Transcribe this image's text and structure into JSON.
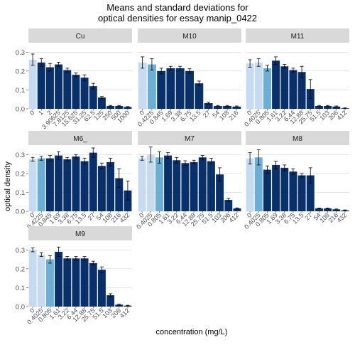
{
  "title_line1": "Means and standard deviations for",
  "title_line2": "optical densities for essay manip_0422",
  "xlabel": "concentration (mg/L)",
  "ylabel": "optical density",
  "colors": {
    "light": "#c6dbef",
    "mid": "#6baed6",
    "dark": "#08306b",
    "strip_bg": "#d9d9d9",
    "grid": "#d3d3d3"
  },
  "chart_data": {
    "type": "bar",
    "ylim": [
      0,
      0.35
    ],
    "yticks": [
      0.0,
      0.1,
      0.2,
      0.3
    ],
    "grid": true,
    "panels": [
      {
        "name": "Cu",
        "categories": [
          "0",
          "1",
          "2",
          "3.90625",
          "7.8125",
          "15.625",
          "31.25",
          "62.5",
          "125",
          "250",
          "500",
          "1000"
        ],
        "values": [
          0.26,
          0.245,
          0.22,
          0.235,
          0.205,
          0.18,
          0.165,
          0.12,
          0.06,
          0.015,
          0.015,
          0.01
        ],
        "errors": [
          0.03,
          0.02,
          0.02,
          0.012,
          0.01,
          0.01,
          0.015,
          0.015,
          0.005,
          0.003,
          0.003,
          0.002
        ],
        "tones": [
          "light",
          "dark",
          "dark",
          "dark",
          "dark",
          "dark",
          "dark",
          "dark",
          "dark",
          "dark",
          "dark",
          "dark"
        ]
      },
      {
        "name": "M10",
        "categories": [
          "0",
          "0.4225",
          "0.845",
          "1.69",
          "3.38",
          "6.75",
          "13.5",
          "27",
          "54",
          "108",
          "216"
        ],
        "values": [
          0.245,
          0.235,
          0.2,
          0.215,
          0.215,
          0.2,
          0.135,
          0.03,
          0.015,
          0.015,
          0.012
        ],
        "errors": [
          0.03,
          0.03,
          0.015,
          0.01,
          0.01,
          0.012,
          0.012,
          0.005,
          0.003,
          0.003,
          0.003
        ],
        "tones": [
          "light",
          "mid",
          "dark",
          "dark",
          "dark",
          "dark",
          "dark",
          "dark",
          "dark",
          "dark",
          "dark"
        ]
      },
      {
        "name": "M11",
        "categories": [
          "0",
          "0.4025",
          "0.805",
          "1.61",
          "3.22",
          "6.44",
          "12.88",
          "25.75",
          "51.5",
          "103",
          "206",
          "412"
        ],
        "values": [
          0.24,
          0.245,
          0.215,
          0.255,
          0.225,
          0.205,
          0.195,
          0.105,
          0.015,
          0.015,
          0.012,
          0.003
        ],
        "errors": [
          0.02,
          0.02,
          0.015,
          0.02,
          0.01,
          0.01,
          0.03,
          0.05,
          0.003,
          0.003,
          0.003,
          0.002
        ],
        "tones": [
          "light",
          "light",
          "mid",
          "dark",
          "dark",
          "dark",
          "dark",
          "dark",
          "dark",
          "dark",
          "dark",
          "dark"
        ]
      },
      {
        "name": "M6_",
        "categories": [
          "0",
          "0.4225",
          "0.845",
          "1.69",
          "3.38",
          "6.75",
          "13.5",
          "27",
          "54",
          "108",
          "216",
          "432"
        ],
        "values": [
          0.275,
          0.28,
          0.28,
          0.295,
          0.275,
          0.29,
          0.265,
          0.31,
          0.24,
          0.26,
          0.175,
          0.11
        ],
        "errors": [
          0.01,
          0.01,
          0.015,
          0.02,
          0.01,
          0.01,
          0.015,
          0.025,
          0.015,
          0.02,
          0.05,
          0.05
        ],
        "tones": [
          "light",
          "mid",
          "dark",
          "dark",
          "dark",
          "dark",
          "dark",
          "dark",
          "dark",
          "dark",
          "dark",
          "dark"
        ]
      },
      {
        "name": "M7",
        "categories": [
          "0",
          "0.4025",
          "0.805",
          "1.61",
          "3.22",
          "6.44",
          "12.88",
          "25.75",
          "51.5",
          "103",
          "206",
          "412"
        ],
        "values": [
          0.28,
          0.3,
          0.285,
          0.295,
          0.27,
          0.255,
          0.26,
          0.285,
          0.265,
          0.195,
          0.06,
          0.015
        ],
        "errors": [
          0.01,
          0.04,
          0.03,
          0.015,
          0.015,
          0.012,
          0.01,
          0.01,
          0.015,
          0.035,
          0.008,
          0.003
        ],
        "tones": [
          "light",
          "light",
          "mid",
          "dark",
          "dark",
          "dark",
          "dark",
          "dark",
          "dark",
          "dark",
          "dark",
          "dark"
        ]
      },
      {
        "name": "M8",
        "categories": [
          "0",
          "0.4025",
          "0.805",
          "1.69",
          "3.38",
          "6.75",
          "13.5",
          "27",
          "54",
          "108",
          "216",
          "432"
        ],
        "values": [
          0.28,
          0.285,
          0.22,
          0.245,
          0.23,
          0.21,
          0.19,
          0.19,
          0.015,
          0.015,
          0.01,
          0.005
        ],
        "errors": [
          0.03,
          0.04,
          0.02,
          0.02,
          0.015,
          0.015,
          0.01,
          0.04,
          0.002,
          0.002,
          0.002,
          0.002
        ],
        "tones": [
          "light",
          "mid",
          "dark",
          "dark",
          "dark",
          "dark",
          "dark",
          "dark",
          "dark",
          "dark",
          "dark",
          "dark"
        ]
      },
      {
        "name": "M9",
        "categories": [
          "0",
          "0.4025",
          "0.805",
          "1.61",
          "3.22",
          "6.44",
          "12.88",
          "25.75",
          "51.5",
          "103",
          "206",
          "412"
        ],
        "values": [
          0.3,
          0.275,
          0.25,
          0.29,
          0.255,
          0.255,
          0.255,
          0.23,
          0.195,
          0.06,
          0.01,
          0.005
        ],
        "errors": [
          0.01,
          0.01,
          0.02,
          0.025,
          0.01,
          0.01,
          0.01,
          0.01,
          0.015,
          0.008,
          0.003,
          0.002
        ],
        "tones": [
          "light",
          "light",
          "mid",
          "dark",
          "dark",
          "dark",
          "dark",
          "dark",
          "dark",
          "dark",
          "dark",
          "dark"
        ]
      }
    ]
  }
}
